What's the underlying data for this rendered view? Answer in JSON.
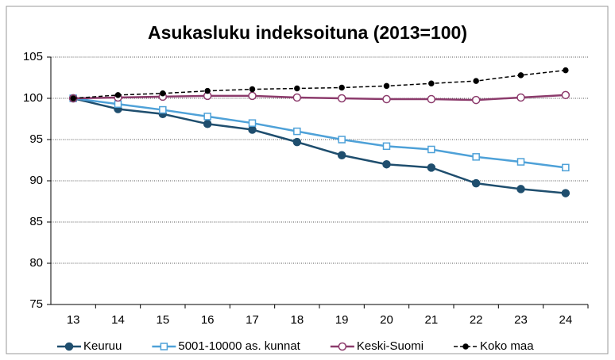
{
  "chart_data": {
    "type": "line",
    "title": "Asukasluku indeksoituna (2013=100)",
    "categories": [
      "13",
      "14",
      "15",
      "16",
      "17",
      "18",
      "19",
      "20",
      "21",
      "22",
      "23",
      "24"
    ],
    "ylim": [
      75,
      105
    ],
    "yticks": [
      75,
      80,
      85,
      90,
      95,
      100,
      105
    ],
    "grid": true,
    "legend": "bottom",
    "series": [
      {
        "name": "Keuruu",
        "color": "#1f4e6e",
        "marker": "circle",
        "filled": true,
        "dashed": false,
        "values": [
          100,
          98.7,
          98.1,
          96.9,
          96.2,
          94.7,
          93.1,
          92.0,
          91.6,
          89.7,
          89.0,
          88.5
        ]
      },
      {
        "name": "5001-10000 as. kunnat",
        "color": "#4ea1d8",
        "marker": "square",
        "filled": false,
        "dashed": false,
        "values": [
          100,
          99.3,
          98.6,
          97.8,
          97.0,
          96.0,
          95.0,
          94.2,
          93.8,
          92.9,
          92.3,
          91.6
        ]
      },
      {
        "name": "Keski-Suomi",
        "color": "#8c3b6c",
        "marker": "circle",
        "filled": false,
        "dashed": false,
        "values": [
          100,
          100.1,
          100.2,
          100.3,
          100.3,
          100.1,
          100.0,
          99.9,
          99.9,
          99.8,
          100.1,
          100.4
        ]
      },
      {
        "name": "Koko maa",
        "color": "#000000",
        "marker": "circle",
        "filled": true,
        "dashed": true,
        "values": [
          100,
          100.4,
          100.6,
          100.9,
          101.1,
          101.2,
          101.3,
          101.5,
          101.8,
          102.1,
          102.8,
          103.4
        ]
      }
    ]
  }
}
